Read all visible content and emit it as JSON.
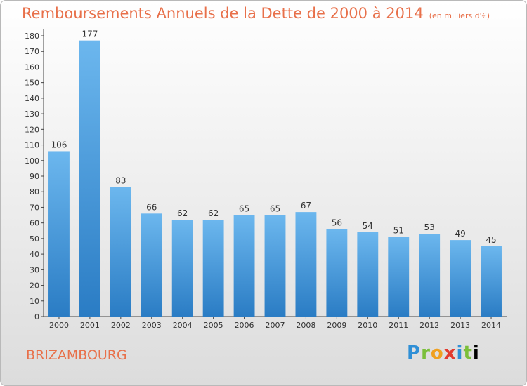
{
  "title": "Remboursements Annuels de la Dette de 2000 à 2014",
  "subtitle": "(en milliers d'€)",
  "commune": "BRIZAMBOURG",
  "logo_text": "Proxiti",
  "colors": {
    "title": "#e8704a",
    "bar_top": "#6cb7ee",
    "bar_bottom": "#2a7cc4"
  },
  "chart_data": {
    "type": "bar",
    "categories": [
      "2000",
      "2001",
      "2002",
      "2003",
      "2004",
      "2005",
      "2006",
      "2007",
      "2008",
      "2009",
      "2010",
      "2011",
      "2012",
      "2013",
      "2014"
    ],
    "values": [
      106,
      177,
      83,
      66,
      62,
      62,
      65,
      65,
      67,
      56,
      54,
      51,
      53,
      49,
      45
    ],
    "ylim": [
      0,
      180
    ],
    "yticks": [
      0,
      10,
      20,
      30,
      40,
      50,
      60,
      70,
      80,
      90,
      100,
      110,
      120,
      130,
      140,
      150,
      160,
      170,
      180
    ],
    "grid": false,
    "title": "Remboursements Annuels de la Dette de 2000 à 2014",
    "subtitle": "(en milliers d'€)",
    "xlabel": "",
    "ylabel": ""
  }
}
